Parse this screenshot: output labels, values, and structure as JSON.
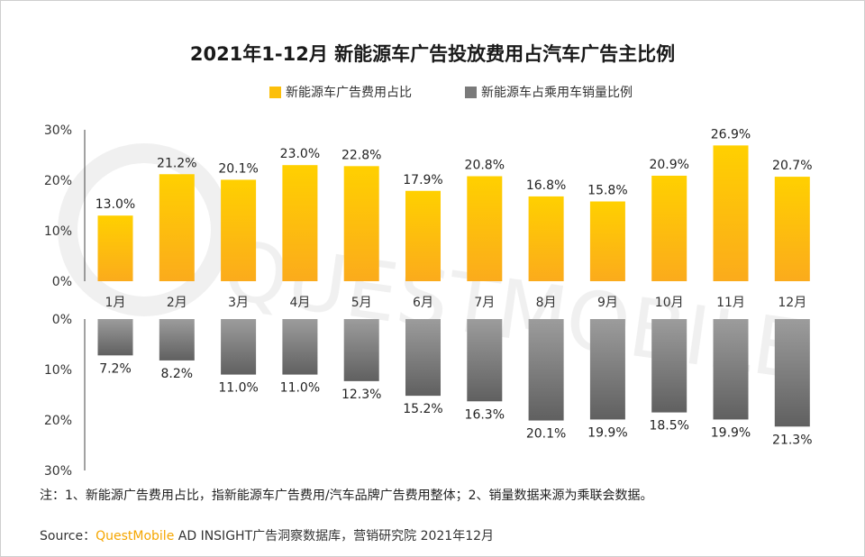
{
  "title": "2021年1-12月 新能源车广告投放费用占汽车广告主比例",
  "legend": [
    {
      "label": "新能源车广告费用占比",
      "color": "#fcbf0a"
    },
    {
      "label": "新能源车占乘用车销量比例",
      "color": "#7a7a7a"
    }
  ],
  "note": "注：1、新能源广告费用占比，指新能源车广告费用/汽车品牌广告费用整体；2、销量数据来源为乘联会数据。",
  "source": {
    "prefix": "Source：",
    "brand": "QuestMobile",
    "rest": " AD INSIGHT广告洞察数据库，营销研究院 2021年12月"
  },
  "watermark": "QUESTMOBILE",
  "chart_data": {
    "type": "bar",
    "categories": [
      "1月",
      "2月",
      "3月",
      "4月",
      "5月",
      "6月",
      "7月",
      "8月",
      "9月",
      "10月",
      "11月",
      "12月"
    ],
    "series": [
      {
        "name": "新能源车广告费用占比",
        "values": [
          13.0,
          21.2,
          20.1,
          23.0,
          22.8,
          17.9,
          20.8,
          16.8,
          15.8,
          20.9,
          26.9,
          20.7
        ],
        "labels": [
          "13.0%",
          "21.2%",
          "20.1%",
          "23.0%",
          "22.8%",
          "17.9%",
          "20.8%",
          "16.8%",
          "15.8%",
          "20.9%",
          "26.9%",
          "20.7%"
        ]
      },
      {
        "name": "新能源车占乘用车销量比例",
        "values": [
          7.2,
          8.2,
          11.0,
          11.0,
          12.3,
          15.2,
          16.3,
          20.1,
          19.9,
          18.5,
          19.9,
          21.3
        ],
        "labels": [
          "7.2%",
          "8.2%",
          "11.0%",
          "11.0%",
          "12.3%",
          "15.2%",
          "16.3%",
          "20.1%",
          "19.9%",
          "18.5%",
          "19.9%",
          "21.3%"
        ]
      }
    ],
    "top_axis": {
      "ylim": [
        0,
        30
      ],
      "ticks": [
        "30%",
        "20%",
        "10%",
        "0%"
      ]
    },
    "bottom_axis": {
      "ylim": [
        0,
        30
      ],
      "ticks": [
        "0%",
        "10%",
        "20%",
        "30%"
      ]
    }
  }
}
